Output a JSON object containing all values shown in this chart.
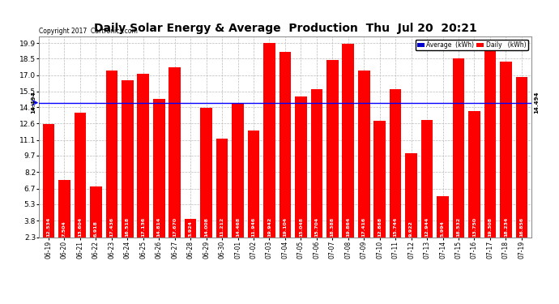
{
  "title": "Daily Solar Energy & Average  Production  Thu  Jul 20  20:21",
  "copyright": "Copyright 2017  Cartronics.com",
  "average_label": "14.494",
  "average_value": 14.494,
  "bar_color": "#FF0000",
  "average_line_color": "#0000FF",
  "legend_avg_color": "#0000CD",
  "legend_daily_color": "#FF0000",
  "dates": [
    "06-19",
    "06-20",
    "06-21",
    "06-22",
    "06-23",
    "06-24",
    "06-25",
    "06-26",
    "06-27",
    "06-28",
    "06-29",
    "06-30",
    "07-01",
    "07-02",
    "07-03",
    "07-04",
    "07-05",
    "07-06",
    "07-07",
    "07-08",
    "07-09",
    "07-10",
    "07-11",
    "07-12",
    "07-13",
    "07-14",
    "07-15",
    "07-16",
    "07-17",
    "07-18",
    "07-19"
  ],
  "values": [
    12.534,
    7.504,
    13.604,
    6.918,
    17.436,
    16.518,
    17.136,
    14.814,
    17.67,
    3.924,
    14.008,
    11.212,
    14.468,
    11.946,
    19.942,
    19.104,
    15.048,
    15.704,
    18.388,
    19.864,
    17.416,
    12.868,
    15.744,
    9.922,
    12.944,
    5.994,
    18.532,
    13.75,
    19.308,
    18.234,
    16.856
  ],
  "yticks": [
    2.3,
    3.8,
    5.3,
    6.7,
    8.2,
    9.7,
    11.1,
    12.6,
    14.1,
    15.5,
    17.0,
    18.5,
    19.9
  ],
  "ymin": 2.3,
  "ymax": 20.5,
  "background_color": "#FFFFFF",
  "grid_color": "#BBBBBB",
  "bar_label_fontsize": 4.5,
  "title_fontsize": 10,
  "bar_bottom": 2.3
}
